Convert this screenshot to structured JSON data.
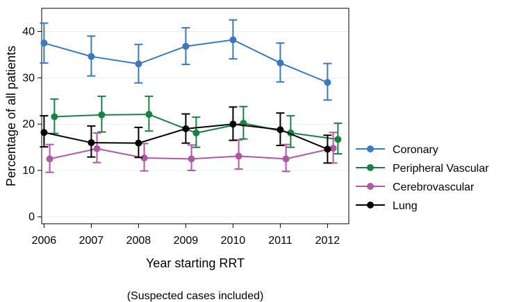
{
  "chart_data": {
    "type": "line",
    "title": "",
    "xlabel": "Year starting RRT",
    "ylabel": "Percentage of all patients",
    "note": "(Suspected cases included)",
    "x": [
      2006,
      2007,
      2008,
      2009,
      2010,
      2011,
      2012
    ],
    "xlim": [
      2005.95,
      2012.45
    ],
    "ylim": [
      -1.5,
      45
    ],
    "yticks": [
      0,
      10,
      20,
      30,
      40
    ],
    "grid": true,
    "legend_position": "right",
    "series": [
      {
        "name": "Coronary",
        "color": "#3a78bf",
        "offset": 0.0,
        "values": [
          37.5,
          34.6,
          33.0,
          36.8,
          38.2,
          33.2,
          29.0
        ],
        "lower": [
          33.2,
          30.4,
          28.9,
          32.9,
          34.1,
          29.1,
          25.2
        ],
        "upper": [
          41.8,
          39.0,
          37.2,
          40.8,
          42.5,
          37.5,
          33.1
        ]
      },
      {
        "name": "Peripheral Vascular",
        "color": "#1a8146",
        "offset": 0.22,
        "values": [
          21.6,
          22.0,
          22.1,
          18.1,
          20.2,
          18.1,
          16.7
        ],
        "lower": [
          18.0,
          18.3,
          18.5,
          15.0,
          16.8,
          15.0,
          13.6
        ],
        "upper": [
          25.4,
          26.0,
          26.0,
          21.5,
          23.8,
          21.8,
          20.2
        ]
      },
      {
        "name": "Cerebrovascular",
        "color": "#b157a5",
        "offset": 0.12,
        "values": [
          12.5,
          14.7,
          12.7,
          12.5,
          13.1,
          12.5,
          14.8
        ],
        "lower": [
          9.6,
          11.7,
          9.9,
          10.0,
          10.3,
          9.8,
          11.6
        ],
        "upper": [
          15.6,
          18.1,
          15.8,
          15.5,
          16.6,
          15.6,
          18.2
        ]
      },
      {
        "name": "Lung",
        "color": "#000000",
        "offset": 0.0,
        "values": [
          18.2,
          16.0,
          15.9,
          19.0,
          20.0,
          18.8,
          14.6
        ],
        "lower": [
          15.1,
          12.9,
          12.8,
          15.9,
          16.5,
          15.4,
          11.6
        ],
        "upper": [
          21.8,
          19.6,
          19.3,
          22.2,
          23.7,
          22.4,
          17.6
        ]
      }
    ]
  }
}
